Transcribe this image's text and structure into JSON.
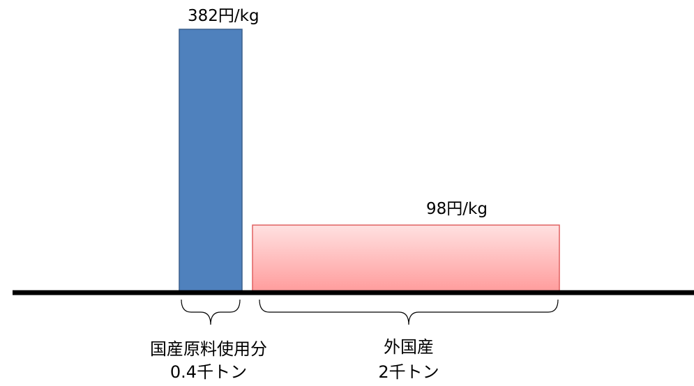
{
  "chart_data": {
    "type": "bar",
    "variable_width": true,
    "categories": [
      "国産原料使用分",
      "外国産"
    ],
    "quantities": [
      "0.4千トン",
      "2千トン"
    ],
    "quantity_values_thousand_tons": [
      0.4,
      2
    ],
    "values": [
      382,
      98
    ],
    "value_labels": [
      "382円/kg",
      "98円/kg"
    ],
    "colors": [
      "#4f81bd",
      "#f4a3a3"
    ],
    "title": "",
    "xlabel": "",
    "ylabel": "",
    "grid": false,
    "legend": "none"
  }
}
